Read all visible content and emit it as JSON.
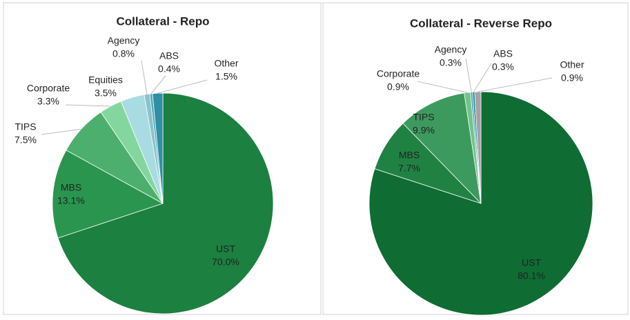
{
  "chart_data": [
    {
      "type": "pie",
      "title": "Collateral - Repo",
      "categories": [
        "UST",
        "MBS",
        "TIPS",
        "Corporate",
        "Equities",
        "Agency",
        "ABS",
        "Other"
      ],
      "values": [
        70.0,
        13.1,
        7.5,
        3.3,
        3.5,
        0.8,
        0.4,
        1.5
      ],
      "value_labels": [
        "70.0%",
        "13.1%",
        "7.5%",
        "3.3%",
        "3.5%",
        "0.8%",
        "0.4%",
        "1.5%"
      ],
      "colors": [
        "#1b8040",
        "#2a954f",
        "#4daf6d",
        "#84d69f",
        "#a9dbe2",
        "#86c4cf",
        "#5ba8b7",
        "#2f8fa4"
      ]
    },
    {
      "type": "pie",
      "title": "Collateral - Reverse Repo",
      "categories": [
        "UST",
        "MBS",
        "TIPS",
        "Corporate",
        "Agency",
        "ABS",
        "Other"
      ],
      "values": [
        80.1,
        7.7,
        9.9,
        0.9,
        0.3,
        0.3,
        0.9
      ],
      "value_labels": [
        "80.1%",
        "7.7%",
        "9.9%",
        "0.9%",
        "0.3%",
        "0.3%",
        "0.9%"
      ],
      "colors": [
        "#0f6c33",
        "#1f8243",
        "#3d9a5e",
        "#72c48b",
        "#4aa9b5",
        "#2a7fa0",
        "#a3a3a3"
      ]
    }
  ]
}
